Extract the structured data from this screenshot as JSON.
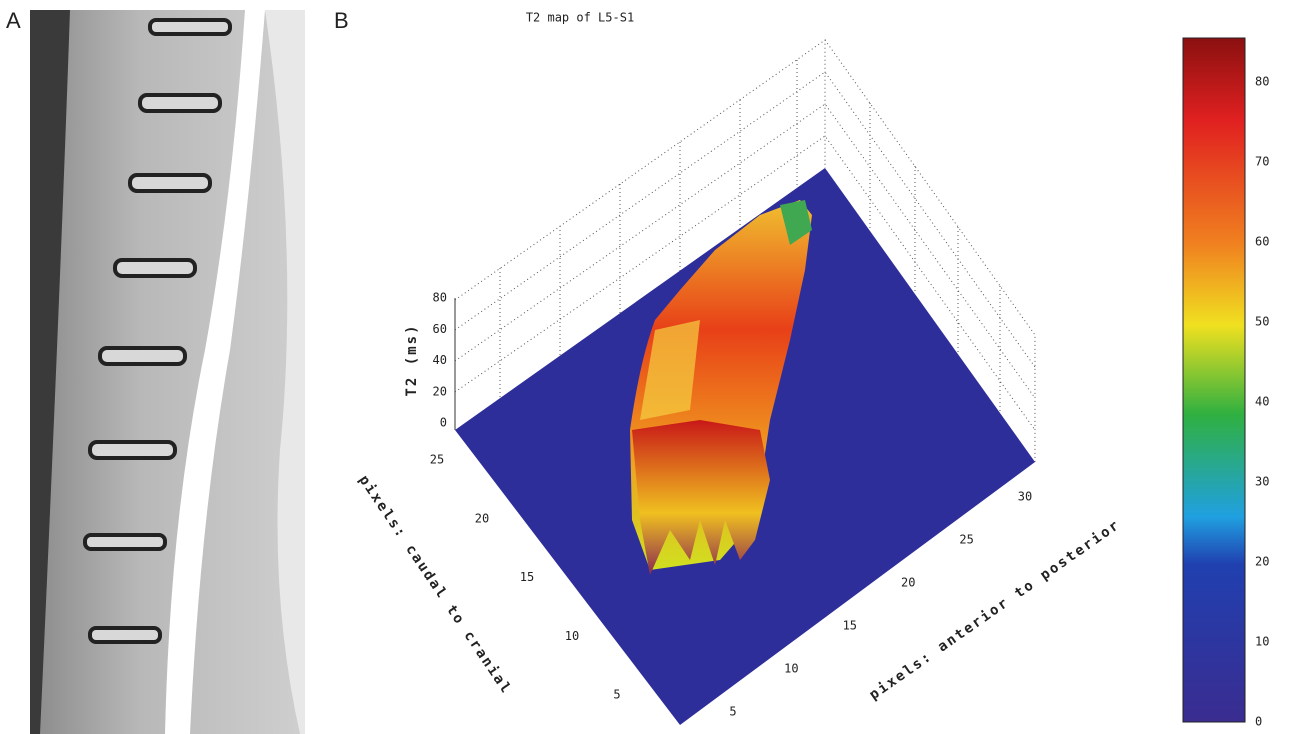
{
  "panels": {
    "a": {
      "label": "A"
    },
    "b": {
      "label": "B"
    }
  },
  "plot": {
    "title": "T2 map of L5-S1",
    "z_label": "T2 (ms)",
    "z_ticks": [
      0,
      20,
      40,
      60,
      80
    ],
    "y_label": "pixels: caudal to cranial",
    "y_ticks": [
      5,
      10,
      15,
      20,
      25
    ],
    "x_label": "pixels: anterior to posterior",
    "x_ticks": [
      5,
      10,
      15,
      20,
      25,
      30
    ],
    "colorbar_ticks": [
      0,
      10,
      20,
      30,
      40,
      50,
      60,
      70,
      80
    ]
  }
}
